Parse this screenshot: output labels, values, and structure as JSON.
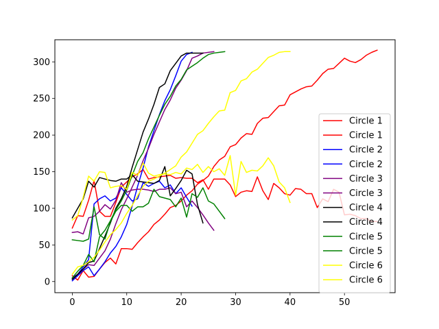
{
  "chart_data": {
    "type": "line",
    "title": "",
    "xlabel": "",
    "ylabel": "",
    "xlim": [
      -3.2,
      59.3
    ],
    "ylim": [
      -15.2,
      330.2
    ],
    "xticks": [
      0,
      10,
      20,
      30,
      40,
      50
    ],
    "yticks": [
      0,
      50,
      100,
      150,
      200,
      250,
      300
    ],
    "grid": false,
    "legend_position": "right",
    "series": [
      {
        "name": "Circle 1",
        "color": "#ff0000",
        "x": [
          0,
          1,
          2,
          3,
          4,
          5,
          6,
          7,
          8,
          9,
          10,
          11,
          12,
          13,
          14,
          15,
          16,
          17,
          18,
          19,
          20,
          21,
          22,
          23,
          24,
          25,
          26,
          27,
          28,
          29,
          30,
          31,
          32,
          33,
          34,
          35,
          36,
          37,
          38,
          39,
          40,
          41,
          42,
          43,
          44,
          45,
          46,
          47,
          48,
          49,
          50,
          51,
          52,
          53,
          54,
          55,
          56
        ],
        "y": [
          8,
          2,
          15,
          6,
          7,
          17,
          26,
          32,
          24,
          45,
          45,
          44,
          53,
          61,
          68,
          78,
          84,
          92,
          101,
          104,
          110,
          118,
          124,
          133,
          138,
          144,
          157,
          166,
          171,
          184,
          187,
          196,
          202,
          201,
          216,
          223,
          224,
          232,
          240,
          241,
          255,
          259,
          263,
          266,
          267,
          275,
          284,
          290,
          291,
          298,
          305,
          301,
          299,
          303,
          309,
          313,
          316
        ]
      },
      {
        "name": "Circle 1",
        "color": "#ff0000",
        "x": [
          0,
          1,
          2,
          3,
          4,
          5,
          6,
          7,
          8,
          9,
          10,
          11,
          12,
          13,
          14,
          15,
          16,
          17,
          18,
          19,
          20,
          21,
          22,
          23,
          24,
          25,
          26,
          27,
          28,
          29,
          30,
          31,
          32,
          33,
          34,
          35,
          36,
          37,
          38,
          39,
          40,
          41,
          42,
          43,
          44,
          45,
          46,
          47,
          48,
          49,
          50,
          51,
          52,
          53,
          54,
          55,
          56
        ],
        "y": [
          73,
          90,
          89,
          111,
          138,
          96,
          89,
          89,
          108,
          129,
          136,
          143,
          147,
          153,
          140,
          142,
          143,
          144,
          145,
          141,
          142,
          141,
          141,
          135,
          139,
          126,
          140,
          140,
          140,
          132,
          116,
          122,
          124,
          123,
          143,
          124,
          112,
          134,
          128,
          120,
          118,
          127,
          126,
          120,
          120,
          101,
          113,
          109,
          126,
          122,
          91,
          92,
          90,
          86,
          86,
          82,
          82
        ]
      },
      {
        "name": "Circle 2",
        "color": "#0000ff",
        "x": [
          0,
          1,
          2,
          3,
          4,
          5,
          6,
          7,
          8,
          9,
          10,
          11,
          12,
          13,
          14,
          15,
          16,
          17,
          18,
          19,
          20,
          21,
          22
        ],
        "y": [
          1,
          8,
          15,
          20,
          8,
          17,
          27,
          39,
          48,
          61,
          78,
          103,
          130,
          155,
          184,
          206,
          228,
          247,
          262,
          281,
          301,
          310,
          313
        ]
      },
      {
        "name": "Circle 2",
        "color": "#0000ff",
        "x": [
          0,
          1,
          2,
          3,
          4,
          5,
          6,
          7,
          8,
          9,
          10,
          11,
          12,
          13,
          14,
          15,
          16,
          17,
          18,
          19,
          20,
          21,
          22
        ],
        "y": [
          5,
          10,
          20,
          30,
          106,
          113,
          117,
          110,
          114,
          128,
          119,
          110,
          113,
          135,
          130,
          134,
          137,
          128,
          132,
          120,
          128,
          115,
          103
        ]
      },
      {
        "name": "Circle 3",
        "color": "#800080",
        "x": [
          0,
          1,
          2,
          3,
          4,
          5,
          6,
          7,
          8,
          9,
          10,
          11,
          12,
          13,
          14,
          15,
          16,
          17,
          18,
          19,
          20,
          21,
          22,
          23,
          24,
          25,
          26
        ],
        "y": [
          4,
          10,
          17,
          23,
          22,
          32,
          42,
          58,
          79,
          98,
          113,
          129,
          145,
          165,
          182,
          201,
          218,
          235,
          248,
          264,
          275,
          288,
          305,
          308,
          312,
          313,
          314
        ]
      },
      {
        "name": "Circle 3",
        "color": "#800080",
        "x": [
          0,
          1,
          2,
          3,
          4,
          5,
          6,
          7,
          8,
          9,
          10,
          11,
          12,
          13,
          14,
          15,
          16,
          17,
          18,
          19,
          20,
          21,
          22,
          23,
          24,
          25,
          26
        ],
        "y": [
          67,
          68,
          65,
          87,
          89,
          96,
          105,
          99,
          111,
          135,
          122,
          125,
          126,
          126,
          125,
          123,
          126,
          126,
          128,
          120,
          122,
          102,
          110,
          101,
          91,
          80,
          70
        ]
      },
      {
        "name": "Circle 4",
        "color": "#000000",
        "x": [
          0,
          1,
          2,
          3,
          4,
          5,
          6,
          7,
          8,
          9,
          10,
          11,
          12,
          13,
          14,
          15,
          16,
          17,
          18,
          19,
          20,
          21,
          22,
          23,
          24
        ],
        "y": [
          3,
          10,
          17,
          26,
          28,
          45,
          62,
          80,
          100,
          113,
          130,
          156,
          180,
          204,
          222,
          242,
          265,
          270,
          288,
          298,
          308,
          312,
          312,
          312,
          312
        ]
      },
      {
        "name": "Circle 4",
        "color": "#000000",
        "x": [
          0,
          1,
          2,
          3,
          4,
          5,
          6,
          7,
          8,
          9,
          10,
          11,
          12,
          13,
          14,
          15,
          16,
          17,
          18,
          19,
          20,
          21,
          22,
          23,
          24
        ],
        "y": [
          87,
          100,
          113,
          137,
          129,
          142,
          140,
          138,
          137,
          140,
          140,
          146,
          137,
          136,
          135,
          134,
          138,
          157,
          117,
          127,
          138,
          152,
          147,
          105,
          80
        ]
      },
      {
        "name": "Circle 5",
        "color": "#008000",
        "x": [
          0,
          1,
          2,
          3,
          4,
          5,
          6,
          7,
          8,
          9,
          10,
          11,
          12,
          13,
          14,
          15,
          16,
          17,
          18,
          19,
          20,
          21,
          22,
          23,
          24,
          25,
          26,
          27,
          28
        ],
        "y": [
          5,
          14,
          22,
          37,
          27,
          61,
          70,
          83,
          98,
          110,
          125,
          145,
          164,
          176,
          195,
          211,
          227,
          242,
          253,
          267,
          276,
          289,
          294,
          299,
          305,
          310,
          312,
          313,
          314
        ]
      },
      {
        "name": "Circle 5",
        "color": "#008000",
        "x": [
          0,
          1,
          2,
          3,
          4,
          5,
          6,
          7,
          8,
          9,
          10,
          11,
          12,
          13,
          14,
          15,
          16,
          17,
          18,
          19,
          20,
          21,
          22,
          23,
          24,
          25,
          26,
          27,
          28
        ],
        "y": [
          57,
          56,
          55,
          58,
          102,
          64,
          58,
          82,
          96,
          104,
          104,
          96,
          102,
          102,
          107,
          126,
          116,
          114,
          112,
          102,
          114,
          88,
          120,
          115,
          128,
          110,
          106,
          96,
          86
        ]
      },
      {
        "name": "Circle 6",
        "color": "#ffff00",
        "x": [
          0,
          1,
          2,
          3,
          4,
          5,
          6,
          7,
          8,
          9,
          10,
          11,
          12,
          13,
          14,
          15,
          16,
          17,
          18,
          19,
          20,
          21,
          22,
          23,
          24,
          25,
          26,
          27,
          28,
          29,
          30,
          31,
          32,
          33,
          34,
          35,
          36,
          37,
          38,
          39,
          40
        ],
        "y": [
          10,
          20,
          22,
          27,
          33,
          43,
          54,
          64,
          71,
          80,
          93,
          104,
          117,
          130,
          137,
          140,
          144,
          148,
          153,
          158,
          170,
          177,
          189,
          201,
          206,
          216,
          225,
          233,
          234,
          258,
          261,
          274,
          277,
          286,
          290,
          298,
          306,
          309,
          313,
          314,
          314
        ]
      },
      {
        "name": "Circle 6",
        "color": "#ffff00",
        "x": [
          0,
          1,
          2,
          3,
          4,
          5,
          6,
          7,
          8,
          9,
          10,
          11,
          12,
          13,
          14,
          15,
          16,
          17,
          18,
          19,
          20,
          21,
          22,
          23,
          24,
          25,
          26,
          27,
          28,
          29,
          30,
          31,
          32,
          33,
          34,
          35,
          36,
          37,
          38,
          39,
          40
        ],
        "y": [
          84,
          90,
          115,
          144,
          137,
          150,
          149,
          128,
          130,
          131,
          126,
          149,
          145,
          162,
          148,
          144,
          146,
          147,
          146,
          149,
          147,
          155,
          153,
          160,
          149,
          157,
          150,
          154,
          145,
          172,
          118,
          164,
          149,
          152,
          151,
          158,
          169,
          158,
          136,
          128,
          108
        ]
      }
    ]
  }
}
